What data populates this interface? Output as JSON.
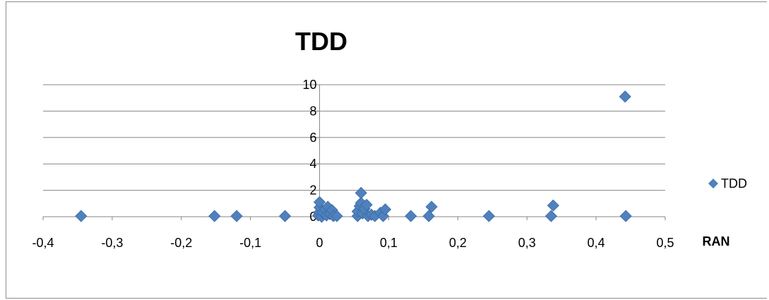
{
  "chart_data": {
    "type": "scatter",
    "title": "TDD",
    "xlabel": "RAN",
    "ylabel": "",
    "xlim": [
      -0.4,
      0.5
    ],
    "ylim": [
      0,
      10
    ],
    "x_ticks": [
      "-0,4",
      "-0,3",
      "-0,2",
      "-0,1",
      "0",
      "0,1",
      "0,2",
      "0,3",
      "0,4",
      "0,5"
    ],
    "y_ticks": [
      "0",
      "2",
      "4",
      "6",
      "8",
      "10"
    ],
    "grid": "horizontal",
    "legend_position": "right",
    "marker": "diamond",
    "series": [
      {
        "name": "TDD",
        "color": "#4f81bd",
        "points": [
          [
            -0.345,
            0.05
          ],
          [
            -0.152,
            0.05
          ],
          [
            -0.12,
            0.05
          ],
          [
            -0.05,
            0.05
          ],
          [
            -0.002,
            0.1
          ],
          [
            0.0,
            0.35
          ],
          [
            0.0,
            0.7
          ],
          [
            0.0,
            1.1
          ],
          [
            0.003,
            0.0
          ],
          [
            0.005,
            0.3
          ],
          [
            0.008,
            0.55
          ],
          [
            0.01,
            0.1
          ],
          [
            0.012,
            0.75
          ],
          [
            0.015,
            0.2
          ],
          [
            0.018,
            0.5
          ],
          [
            0.02,
            0.05
          ],
          [
            0.025,
            0.05
          ],
          [
            0.055,
            0.05
          ],
          [
            0.055,
            0.4
          ],
          [
            0.058,
            0.8
          ],
          [
            0.06,
            1.05
          ],
          [
            0.06,
            1.8
          ],
          [
            0.062,
            0.25
          ],
          [
            0.065,
            0.6
          ],
          [
            0.068,
            0.9
          ],
          [
            0.07,
            0.05
          ],
          [
            0.075,
            0.15
          ],
          [
            0.08,
            0.05
          ],
          [
            0.088,
            0.3
          ],
          [
            0.092,
            0.05
          ],
          [
            0.095,
            0.55
          ],
          [
            0.132,
            0.05
          ],
          [
            0.158,
            0.05
          ],
          [
            0.162,
            0.75
          ],
          [
            0.245,
            0.05
          ],
          [
            0.335,
            0.05
          ],
          [
            0.338,
            0.85
          ],
          [
            0.442,
            9.1
          ],
          [
            0.443,
            0.05
          ]
        ]
      }
    ]
  }
}
